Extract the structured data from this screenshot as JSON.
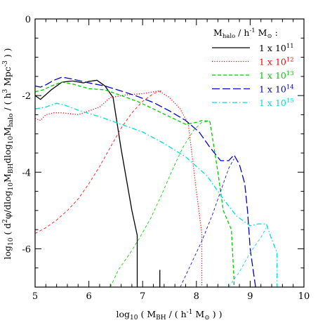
{
  "chart_data": {
    "type": "line",
    "xlabel": "log10 ( MBH / ( h^-1 M⊙ ) )",
    "ylabel": "log10 ( d²φ/dlog10MBHdlog10Mhalo / ( h³ Mpc⁻³ ) )",
    "xlim": [
      5,
      10
    ],
    "ylim": [
      -7,
      0
    ],
    "x_ticks": [
      "5",
      "6",
      "7",
      "8",
      "9",
      "10"
    ],
    "y_ticks": [
      "0",
      "-2",
      "-4",
      "-6"
    ],
    "legend_title": "Mhalo / h^-1 M⊙ :",
    "legend_position": "top-right",
    "series": [
      {
        "name": "1 x 10^11",
        "color": "#000000",
        "style": "solid",
        "dashed_part": [],
        "solid_part": [
          [
            5.0,
            -2.0
          ],
          [
            5.1,
            -2.1
          ],
          [
            5.3,
            -1.85
          ],
          [
            5.5,
            -1.65
          ],
          [
            5.7,
            -1.62
          ],
          [
            5.9,
            -1.67
          ],
          [
            6.0,
            -1.63
          ],
          [
            6.15,
            -1.6
          ],
          [
            6.3,
            -1.75
          ],
          [
            6.45,
            -2.05
          ],
          [
            6.6,
            -3.4
          ],
          [
            6.8,
            -5.0
          ],
          [
            6.9,
            -5.65
          ],
          [
            6.9,
            -7.0
          ]
        ]
      },
      {
        "name": "1 x 10^12",
        "color": "#ff0000",
        "style": "dotted",
        "dashed_part": [
          [
            5.0,
            -5.6
          ],
          [
            5.2,
            -5.45
          ],
          [
            5.4,
            -5.25
          ],
          [
            5.6,
            -5.0
          ],
          [
            5.8,
            -4.7
          ],
          [
            6.0,
            -4.3
          ],
          [
            6.2,
            -3.85
          ],
          [
            6.4,
            -3.35
          ],
          [
            6.6,
            -2.85
          ],
          [
            6.8,
            -2.45
          ],
          [
            7.0,
            -2.15
          ],
          [
            7.2,
            -1.95
          ],
          [
            7.35,
            -1.87
          ]
        ],
        "solid_part": [
          [
            5.0,
            -2.6
          ],
          [
            5.1,
            -2.65
          ],
          [
            5.2,
            -2.5
          ],
          [
            5.35,
            -2.45
          ],
          [
            5.5,
            -2.45
          ],
          [
            5.8,
            -2.5
          ],
          [
            6.0,
            -2.4
          ],
          [
            6.2,
            -2.3
          ],
          [
            6.4,
            -2.05
          ],
          [
            6.7,
            -1.98
          ],
          [
            7.0,
            -1.95
          ],
          [
            7.3,
            -1.88
          ],
          [
            7.5,
            -2.05
          ],
          [
            7.7,
            -2.35
          ],
          [
            7.85,
            -2.75
          ],
          [
            8.0,
            -4.5
          ],
          [
            8.1,
            -5.6
          ],
          [
            8.1,
            -7.0
          ]
        ]
      },
      {
        "name": "1 x 10^13",
        "color": "#00cc00",
        "style": "short-dash",
        "dashed_part": [
          [
            6.4,
            -7.0
          ],
          [
            6.55,
            -6.55
          ],
          [
            6.75,
            -6.15
          ],
          [
            6.95,
            -5.7
          ],
          [
            7.15,
            -5.2
          ],
          [
            7.35,
            -4.6
          ],
          [
            7.55,
            -3.95
          ],
          [
            7.75,
            -3.35
          ],
          [
            7.95,
            -2.9
          ],
          [
            8.1,
            -2.7
          ],
          [
            8.25,
            -2.67
          ]
        ],
        "solid_part": [
          [
            5.0,
            -1.9
          ],
          [
            5.15,
            -1.85
          ],
          [
            5.3,
            -1.75
          ],
          [
            5.5,
            -1.65
          ],
          [
            5.7,
            -1.7
          ],
          [
            6.0,
            -1.82
          ],
          [
            6.3,
            -1.85
          ],
          [
            6.6,
            -2.0
          ],
          [
            6.9,
            -2.15
          ],
          [
            7.2,
            -2.35
          ],
          [
            7.5,
            -2.55
          ],
          [
            7.8,
            -2.75
          ],
          [
            8.0,
            -2.7
          ],
          [
            8.1,
            -2.65
          ],
          [
            8.25,
            -2.67
          ],
          [
            8.4,
            -4.0
          ],
          [
            8.5,
            -5.0
          ],
          [
            8.65,
            -5.5
          ],
          [
            8.7,
            -6.8
          ],
          [
            8.7,
            -7.0
          ]
        ]
      },
      {
        "name": "1 x 10^14",
        "color": "#0000cc",
        "style": "long-dash",
        "dashed_part": [
          [
            7.7,
            -7.0
          ],
          [
            7.9,
            -6.4
          ],
          [
            8.1,
            -5.8
          ],
          [
            8.3,
            -5.1
          ],
          [
            8.5,
            -4.3
          ],
          [
            8.6,
            -3.9
          ],
          [
            8.7,
            -3.65
          ]
        ],
        "solid_part": [
          [
            5.0,
            -1.75
          ],
          [
            5.1,
            -1.78
          ],
          [
            5.2,
            -1.72
          ],
          [
            5.35,
            -1.6
          ],
          [
            5.5,
            -1.52
          ],
          [
            5.7,
            -1.57
          ],
          [
            6.0,
            -1.67
          ],
          [
            6.3,
            -1.75
          ],
          [
            6.6,
            -1.88
          ],
          [
            6.9,
            -2.02
          ],
          [
            7.2,
            -2.18
          ],
          [
            7.5,
            -2.4
          ],
          [
            7.8,
            -2.65
          ],
          [
            8.05,
            -2.95
          ],
          [
            8.25,
            -3.35
          ],
          [
            8.45,
            -3.7
          ],
          [
            8.6,
            -3.7
          ],
          [
            8.7,
            -3.55
          ],
          [
            8.8,
            -3.8
          ],
          [
            8.9,
            -4.3
          ],
          [
            8.95,
            -5.0
          ],
          [
            9.0,
            -6.0
          ],
          [
            9.05,
            -6.5
          ],
          [
            9.1,
            -7.0
          ]
        ]
      },
      {
        "name": "1 x 10^15",
        "color": "#00dddd",
        "style": "dash-dot",
        "dashed_part": [
          [
            8.6,
            -7.0
          ],
          [
            8.8,
            -6.6
          ],
          [
            9.0,
            -6.1
          ],
          [
            9.2,
            -5.7
          ],
          [
            9.3,
            -5.45
          ]
        ],
        "solid_part": [
          [
            5.0,
            -2.35
          ],
          [
            5.2,
            -2.3
          ],
          [
            5.4,
            -2.2
          ],
          [
            5.55,
            -2.25
          ],
          [
            5.8,
            -2.38
          ],
          [
            6.2,
            -2.55
          ],
          [
            6.6,
            -2.75
          ],
          [
            7.0,
            -2.95
          ],
          [
            7.4,
            -3.25
          ],
          [
            7.8,
            -3.6
          ],
          [
            8.2,
            -4.1
          ],
          [
            8.5,
            -4.7
          ],
          [
            8.75,
            -5.15
          ],
          [
            9.0,
            -5.4
          ],
          [
            9.15,
            -5.35
          ],
          [
            9.3,
            -5.35
          ],
          [
            9.4,
            -5.75
          ],
          [
            9.5,
            -6.1
          ],
          [
            9.5,
            -7.0
          ]
        ]
      }
    ],
    "extra_marks": [
      {
        "x": 7.32,
        "y_from": -7.0,
        "y_to": -6.55,
        "color": "#000000"
      }
    ]
  },
  "labels": {
    "ylabel_parts": {
      "pre": "log",
      "sub1": "10",
      "mid": " ( d",
      "sup": "2",
      "mid2": "φ/dlog",
      "sub2": "10",
      "mid3": "M",
      "sub3": "BH",
      "mid4": "dlog",
      "sub4": "10",
      "mid5": "M",
      "sub5": "halo",
      "post": "  / ( h",
      "sup2": "3",
      "post2": " Mpc",
      "sup3": "-3",
      "post3": " ) )"
    },
    "xlabel_parts": {
      "pre": "log",
      "sub1": "10",
      "mid": " ( M",
      "sub2": "BH",
      "mid2": " / ( h",
      "sup": "-1",
      "mid3": " M",
      "sub3": "⊙",
      "post": " ) )"
    },
    "legend_title_parts": {
      "pre": "M",
      "sub": "halo",
      "mid": " / h",
      "sup": "-1",
      "mid2": " M",
      "sub2": "⊙",
      "post": " :"
    },
    "legend_entries": [
      {
        "base": "1 x 10",
        "exp": "11"
      },
      {
        "base": "1 x 10",
        "exp": "12"
      },
      {
        "base": "1 x 10",
        "exp": "13"
      },
      {
        "base": "1 x 10",
        "exp": "14"
      },
      {
        "base": "1 x 10",
        "exp": "15"
      }
    ]
  }
}
